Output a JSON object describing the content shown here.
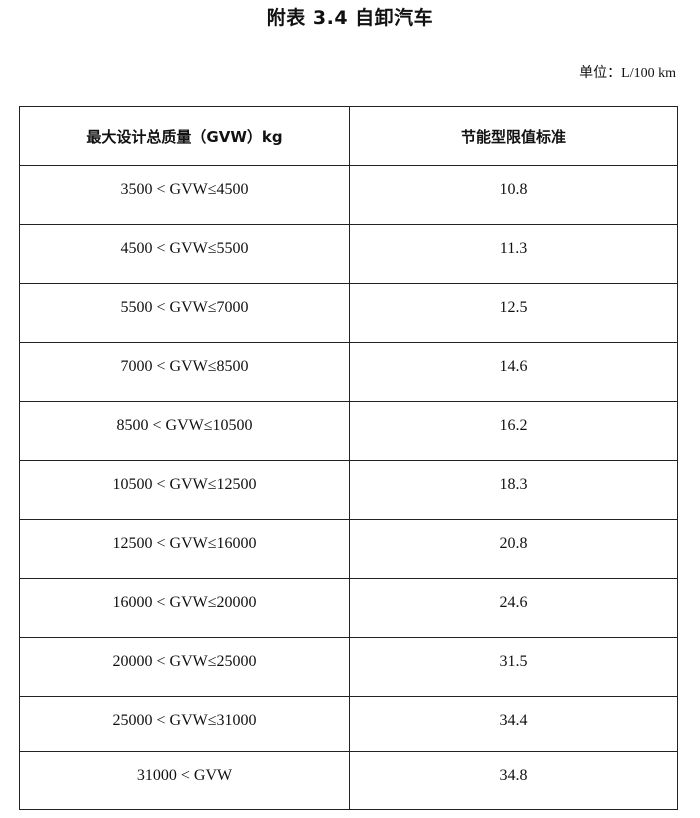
{
  "title": "附表 3.4  自卸汽车",
  "unit": "单位：L/100 km",
  "table": {
    "headers": [
      "最大设计总质量（GVW）kg",
      "节能型限值标准"
    ],
    "rows": [
      [
        "3500 < GVW≤4500",
        "10.8"
      ],
      [
        "4500 < GVW≤5500",
        "11.3"
      ],
      [
        "5500 < GVW≤7000",
        "12.5"
      ],
      [
        "7000 < GVW≤8500",
        "14.6"
      ],
      [
        "8500 < GVW≤10500",
        "16.2"
      ],
      [
        "10500 < GVW≤12500",
        "18.3"
      ],
      [
        "12500 < GVW≤16000",
        "20.8"
      ],
      [
        "16000 < GVW≤20000",
        "24.6"
      ],
      [
        "20000 < GVW≤25000",
        "31.5"
      ],
      [
        "25000 < GVW≤31000",
        "34.4"
      ],
      [
        "31000 < GVW",
        "34.8"
      ]
    ]
  }
}
